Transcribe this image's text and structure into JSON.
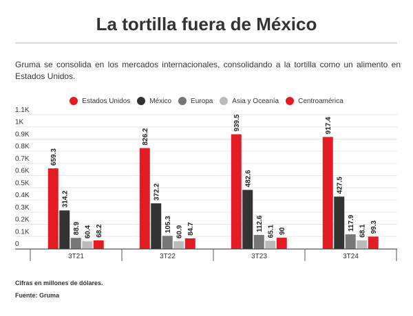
{
  "title": "La tortilla fuera de México",
  "subtitle": "Gruma se consolida en los mercados internacionales, consolidando a la tortilla como un alimento en Estados Unidos.",
  "notes": {
    "units": "Cifras en millones de dólares.",
    "source": "Fuente: Gruma"
  },
  "chart_data": {
    "type": "bar",
    "categories": [
      "3T21",
      "3T22",
      "3T23",
      "3T24"
    ],
    "series": [
      {
        "name": "Estados Unidos",
        "color": "#e31b23",
        "values": [
          659.3,
          826.2,
          939.5,
          917.4
        ]
      },
      {
        "name": "México",
        "color": "#333333",
        "values": [
          314.2,
          372.2,
          482.6,
          427.5
        ]
      },
      {
        "name": "Europa",
        "color": "#777777",
        "values": [
          88.9,
          105.3,
          112.6,
          117.9
        ]
      },
      {
        "name": "Asia y Oceanía",
        "color": "#bbbbbb",
        "values": [
          60.4,
          60.9,
          65.1,
          68.1
        ]
      },
      {
        "name": "Centroamérica",
        "color": "#e31b23",
        "values": [
          68.2,
          84.7,
          90,
          99.3
        ]
      }
    ],
    "ylim": [
      0,
      1100
    ],
    "yticks": [
      0,
      100,
      200,
      300,
      400,
      500,
      600,
      700,
      800,
      900,
      1000,
      1100
    ],
    "ytick_labels": [
      "0",
      "0.1K",
      "0.2K",
      "0.3K",
      "0.4K",
      "0.5K",
      "0.6K",
      "0.7K",
      "0.8K",
      "0.9K",
      "1K",
      "1.1K"
    ],
    "grid": true,
    "legend_position": "top",
    "data_labels": true
  }
}
